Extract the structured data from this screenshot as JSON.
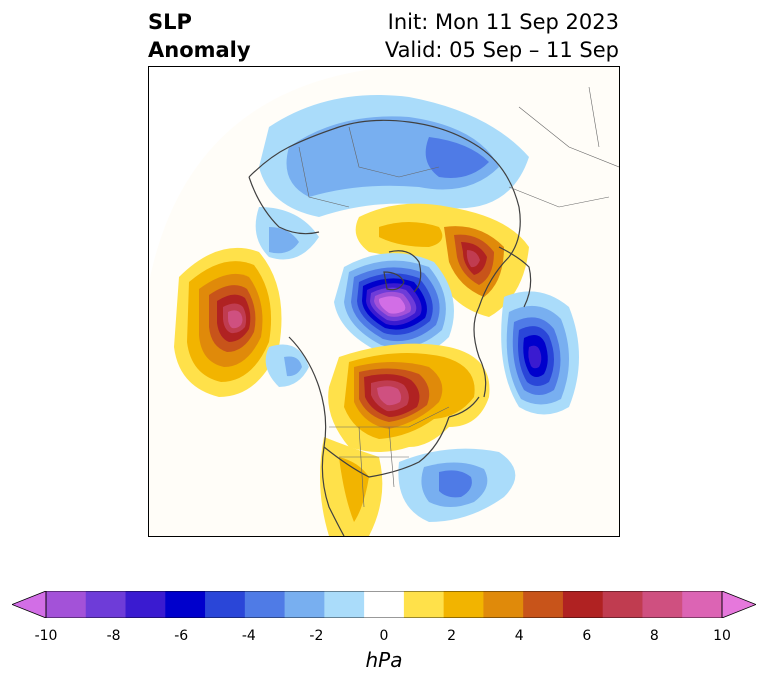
{
  "header": {
    "title_line1": "SLP",
    "title_line2": "Anomaly",
    "init_text": "Init: Mon 11 Sep 2023",
    "valid_text": "Valid: 05 Sep – 11 Sep"
  },
  "colorbar": {
    "unit_label": "hPa",
    "tick_labels": [
      "-10",
      "-8",
      "-6",
      "-4",
      "-2",
      "0",
      "2",
      "4",
      "6",
      "8",
      "10"
    ],
    "bin_colors": [
      "#a352d8",
      "#6e3cd8",
      "#3a1bd0",
      "#0000cc",
      "#2a46d8",
      "#4f7be6",
      "#78aff0",
      "#aadcfa",
      "#ffffff",
      "#ffe14a",
      "#f2b400",
      "#e08a0a",
      "#c8541a",
      "#b02222",
      "#c03c50",
      "#cf5080",
      "#dc64b4"
    ],
    "under_color": "#d26ee6",
    "over_color": "#e678dc"
  },
  "map": {
    "colors": {
      "land_outline": "#404040",
      "border": "#444444"
    }
  }
}
